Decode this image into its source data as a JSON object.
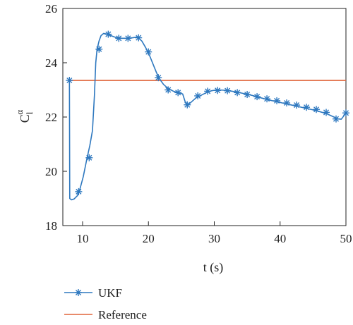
{
  "chart_data": {
    "type": "line",
    "xlabel": "t (s)",
    "ylabel": {
      "base": "C",
      "sub": "l",
      "sup": "α"
    },
    "xlim": [
      7,
      50
    ],
    "ylim": [
      18,
      26
    ],
    "xticks": [
      10,
      20,
      30,
      40,
      50
    ],
    "yticks": [
      18,
      20,
      22,
      24,
      26
    ],
    "grid": false,
    "legend_position": "bottom-left",
    "series": [
      {
        "name": "UKF",
        "color": "#2e78bf",
        "marker": "asterisk",
        "x": [
          8.0,
          8.05,
          8.3,
          8.7,
          9.2,
          9.6,
          10.1,
          10.6,
          11.1,
          11.5,
          11.8,
          12.0,
          12.2,
          12.5,
          12.8,
          13.2,
          13.8,
          14.5,
          15.2,
          16.0,
          16.8,
          17.6,
          18.3,
          19.0,
          19.6,
          20.2,
          20.7,
          21.2,
          21.7,
          22.3,
          23.0,
          23.8,
          24.5,
          25.2,
          25.6,
          26.0,
          26.5,
          27.2,
          28.0,
          28.8,
          29.6,
          30.4,
          31.3,
          32.2,
          33.2,
          34.2,
          35.2,
          36.2,
          37.2,
          38.3,
          39.4,
          40.5,
          41.6,
          42.7,
          43.8,
          44.9,
          46.0,
          47.1,
          48.0,
          48.8,
          49.3,
          49.7,
          50.0
        ],
        "y": [
          23.35,
          19.0,
          18.95,
          18.98,
          19.1,
          19.35,
          19.8,
          20.4,
          20.95,
          21.5,
          22.8,
          24.0,
          24.5,
          24.8,
          25.0,
          25.08,
          25.05,
          24.98,
          24.92,
          24.9,
          24.9,
          24.92,
          24.95,
          24.8,
          24.55,
          24.25,
          23.95,
          23.65,
          23.4,
          23.2,
          23.05,
          22.95,
          22.9,
          22.85,
          22.55,
          22.45,
          22.55,
          22.7,
          22.8,
          22.9,
          22.97,
          23.0,
          22.99,
          22.97,
          22.93,
          22.88,
          22.83,
          22.77,
          22.7,
          22.63,
          22.57,
          22.51,
          22.45,
          22.39,
          22.33,
          22.27,
          22.2,
          22.12,
          22.02,
          21.93,
          21.92,
          22.05,
          22.15
        ],
        "marker_x": [
          8.0,
          9.4,
          11.0,
          12.5,
          13.9,
          15.5,
          16.9,
          18.5,
          20.0,
          21.5,
          23.0,
          24.5,
          25.9,
          27.5,
          29.0,
          30.5,
          32.0,
          33.5,
          35.0,
          36.5,
          38.0,
          39.5,
          41.0,
          42.5,
          44.0,
          45.5,
          47.0,
          48.5,
          50.0
        ],
        "marker_y": [
          23.35,
          19.25,
          20.5,
          24.5,
          25.05,
          24.9,
          24.9,
          24.92,
          24.4,
          23.45,
          23.0,
          22.9,
          22.45,
          22.78,
          22.95,
          22.98,
          22.97,
          22.9,
          22.83,
          22.75,
          22.67,
          22.6,
          22.52,
          22.44,
          22.36,
          22.28,
          22.17,
          21.93,
          22.15
        ]
      },
      {
        "name": "Reference",
        "color": "#e0653a",
        "marker": "none",
        "x": [
          8.0,
          50.0
        ],
        "y": [
          23.35,
          23.35
        ]
      }
    ]
  }
}
